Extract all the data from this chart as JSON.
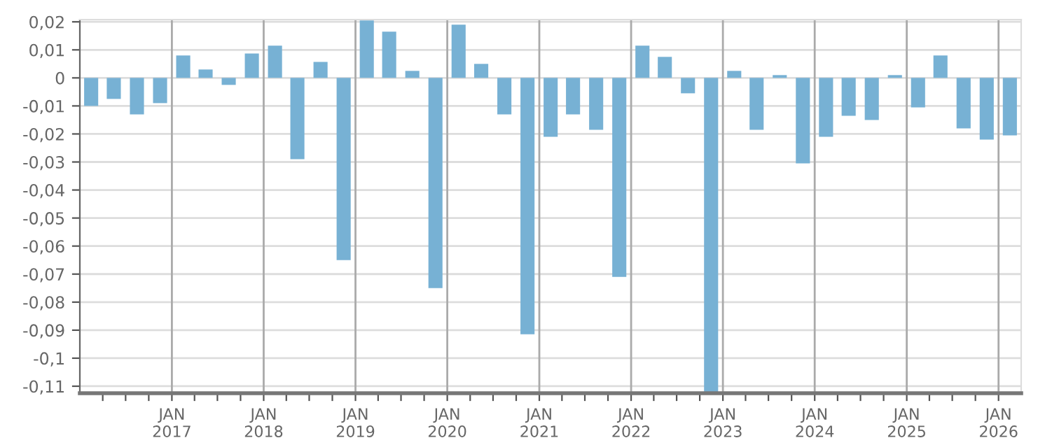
{
  "chart_data": {
    "type": "bar",
    "color": "#77b1d4",
    "x": [
      "2016-02-15",
      "2016-05-15",
      "2016-08-15",
      "2016-11-15",
      "2017-02-15",
      "2017-05-15",
      "2017-08-15",
      "2017-11-15",
      "2018-02-15",
      "2018-05-15",
      "2018-08-15",
      "2018-11-15",
      "2019-02-15",
      "2019-05-15",
      "2019-08-15",
      "2019-11-15",
      "2020-02-15",
      "2020-05-15",
      "2020-08-15",
      "2020-11-15",
      "2021-02-15",
      "2021-05-15",
      "2021-08-15",
      "2021-11-15",
      "2022-02-15",
      "2022-05-15",
      "2022-08-15",
      "2022-11-15",
      "2023-02-15",
      "2023-05-15",
      "2023-08-15",
      "2023-11-15",
      "2024-02-15",
      "2024-05-15",
      "2024-08-15",
      "2024-11-15",
      "2025-02-15",
      "2025-05-15",
      "2025-08-15",
      "2025-11-15",
      "2026-02-15"
    ],
    "values": [
      -0.01,
      -0.0075,
      -0.013,
      -0.009,
      0.008,
      0.003,
      -0.0025,
      0.0087,
      0.0115,
      -0.029,
      0.0057,
      -0.065,
      0.0205,
      0.0165,
      0.0025,
      -0.075,
      0.019,
      0.005,
      -0.013,
      -0.0915,
      -0.021,
      -0.013,
      -0.0185,
      -0.071,
      0.0115,
      0.0075,
      -0.0055,
      -0.1125,
      0.0025,
      -0.0185,
      0.001,
      -0.0305,
      -0.021,
      -0.0135,
      -0.015,
      0.001,
      -0.0105,
      0.008,
      -0.018,
      -0.022,
      -0.0205
    ],
    "xlim": [
      "2016-01-01",
      "2026-04-01"
    ],
    "xticks": [
      {
        "value": "2016-04-01",
        "label": null
      },
      {
        "value": "2016-07-01",
        "label": null
      },
      {
        "value": "2016-10-01",
        "label": null
      },
      {
        "value": "2017-01-01",
        "label": "JAN\n2017"
      },
      {
        "value": "2017-04-01",
        "label": null
      },
      {
        "value": "2017-07-01",
        "label": null
      },
      {
        "value": "2017-10-01",
        "label": null
      },
      {
        "value": "2018-01-01",
        "label": "JAN\n2018"
      },
      {
        "value": "2018-04-01",
        "label": null
      },
      {
        "value": "2018-07-01",
        "label": null
      },
      {
        "value": "2018-10-01",
        "label": null
      },
      {
        "value": "2019-01-01",
        "label": "JAN\n2019"
      },
      {
        "value": "2019-04-01",
        "label": null
      },
      {
        "value": "2019-07-01",
        "label": null
      },
      {
        "value": "2019-10-01",
        "label": null
      },
      {
        "value": "2020-01-01",
        "label": "JAN\n2020"
      },
      {
        "value": "2020-04-01",
        "label": null
      },
      {
        "value": "2020-07-01",
        "label": null
      },
      {
        "value": "2020-10-01",
        "label": null
      },
      {
        "value": "2021-01-01",
        "label": "JAN\n2021"
      },
      {
        "value": "2021-04-01",
        "label": null
      },
      {
        "value": "2021-07-01",
        "label": null
      },
      {
        "value": "2021-10-01",
        "label": null
      },
      {
        "value": "2022-01-01",
        "label": "JAN\n2022"
      },
      {
        "value": "2022-04-01",
        "label": null
      },
      {
        "value": "2022-07-01",
        "label": null
      },
      {
        "value": "2022-10-01",
        "label": null
      },
      {
        "value": "2023-01-01",
        "label": "JAN\n2023"
      },
      {
        "value": "2023-04-01",
        "label": null
      },
      {
        "value": "2023-07-01",
        "label": null
      },
      {
        "value": "2023-10-01",
        "label": null
      },
      {
        "value": "2024-01-01",
        "label": "JAN\n2024"
      },
      {
        "value": "2024-04-01",
        "label": null
      },
      {
        "value": "2024-07-01",
        "label": null
      },
      {
        "value": "2024-10-01",
        "label": null
      },
      {
        "value": "2025-01-01",
        "label": "JAN\n2025"
      },
      {
        "value": "2025-04-01",
        "label": null
      },
      {
        "value": "2025-07-01",
        "label": null
      },
      {
        "value": "2025-10-01",
        "label": null
      },
      {
        "value": "2026-01-01",
        "label": "JAN\n2026"
      }
    ],
    "ylim": [
      -0.1125,
      0.0208
    ],
    "yticks": [
      {
        "value": 0.02,
        "label": "0,02"
      },
      {
        "value": 0.01,
        "label": "0,01"
      },
      0,
      {
        "value": -0.01,
        "label": "-0,01"
      },
      {
        "value": -0.02,
        "label": "-0,02"
      },
      {
        "value": -0.03,
        "label": "-0,03"
      },
      {
        "value": -0.04,
        "label": "-0,04"
      },
      {
        "value": -0.05,
        "label": "-0,05"
      },
      {
        "value": -0.06,
        "label": "-0,06"
      },
      {
        "value": -0.07,
        "label": "-0,07"
      },
      {
        "value": -0.08,
        "label": "-0,08"
      },
      {
        "value": -0.09,
        "label": "-0,09"
      },
      {
        "value": -0.1,
        "label": "-0,1"
      },
      {
        "value": -0.11,
        "label": "-0,11"
      }
    ],
    "grid": true
  }
}
